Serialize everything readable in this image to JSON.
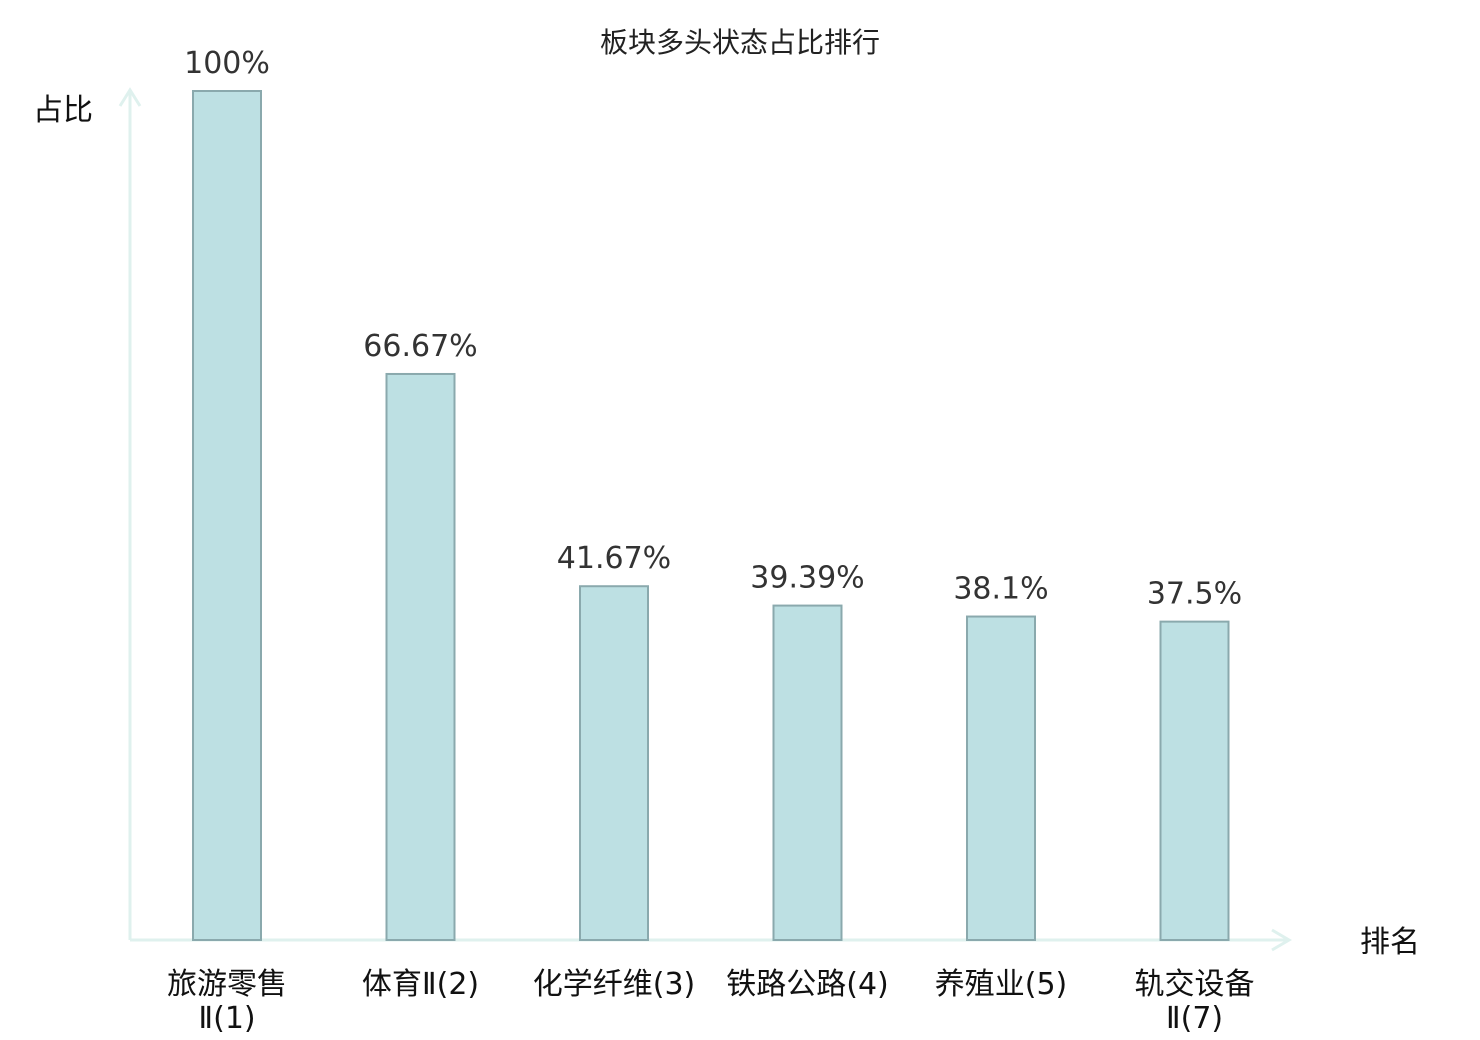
{
  "chart_data": {
    "type": "bar",
    "title": "板块多头状态占比排行",
    "xlabel": "排名",
    "ylabel": "占比",
    "ylim": [
      0,
      100
    ],
    "grid": false,
    "categories": [
      [
        "旅游零售",
        "Ⅱ(1)"
      ],
      [
        "体育Ⅱ(2)"
      ],
      [
        "化学纤维(3)"
      ],
      [
        "铁路公路(4)"
      ],
      [
        "养殖业(5)"
      ],
      [
        "轨交设备",
        "Ⅱ(7)"
      ]
    ],
    "values": [
      100,
      66.67,
      41.67,
      39.39,
      38.1,
      37.5
    ],
    "value_labels": [
      "100%",
      "66.67%",
      "41.67%",
      "39.39%",
      "38.1%",
      "37.5%"
    ],
    "highlight_index": 5,
    "colors": {
      "bar_fill": "#bde0e3",
      "bar_stroke": "#8aa9ad",
      "axis": "#dff1ee",
      "highlight_text": "#e8141b",
      "text": "#111111"
    }
  }
}
